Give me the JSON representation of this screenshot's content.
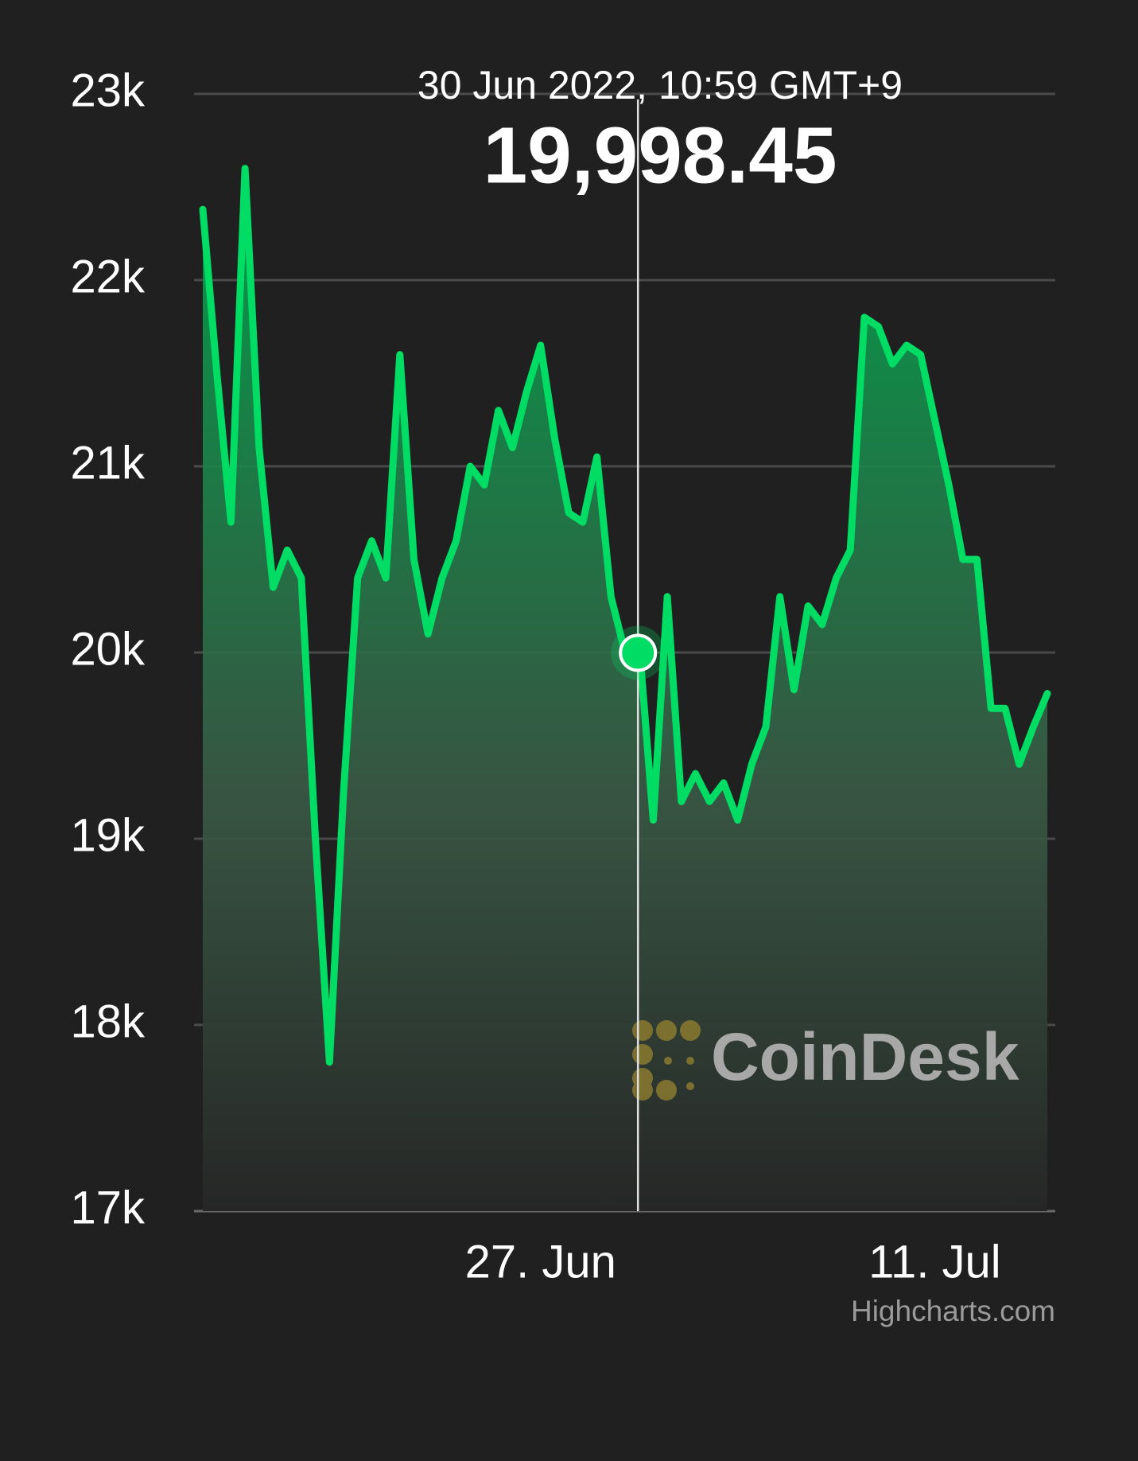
{
  "chart_data": {
    "type": "area",
    "x": [
      "2022-06-15T00:00",
      "2022-06-15T12:00",
      "2022-06-16T00:00",
      "2022-06-16T12:00",
      "2022-06-17T00:00",
      "2022-06-17T12:00",
      "2022-06-18T00:00",
      "2022-06-18T12:00",
      "2022-06-19T00:00",
      "2022-06-19T12:00",
      "2022-06-20T00:00",
      "2022-06-20T12:00",
      "2022-06-21T00:00",
      "2022-06-21T12:00",
      "2022-06-22T00:00",
      "2022-06-22T12:00",
      "2022-06-23T00:00",
      "2022-06-23T12:00",
      "2022-06-24T00:00",
      "2022-06-24T12:00",
      "2022-06-25T00:00",
      "2022-06-25T12:00",
      "2022-06-26T00:00",
      "2022-06-26T12:00",
      "2022-06-27T00:00",
      "2022-06-27T12:00",
      "2022-06-28T00:00",
      "2022-06-28T12:00",
      "2022-06-29T00:00",
      "2022-06-29T12:00",
      "2022-06-30T00:00",
      "2022-06-30T12:00",
      "2022-07-01T00:00",
      "2022-07-01T12:00",
      "2022-07-02T00:00",
      "2022-07-02T12:00",
      "2022-07-03T00:00",
      "2022-07-03T12:00",
      "2022-07-04T00:00",
      "2022-07-04T12:00",
      "2022-07-05T00:00",
      "2022-07-05T12:00",
      "2022-07-06T00:00",
      "2022-07-06T12:00",
      "2022-07-07T00:00",
      "2022-07-07T12:00",
      "2022-07-08T00:00",
      "2022-07-08T12:00",
      "2022-07-09T00:00",
      "2022-07-09T12:00",
      "2022-07-10T00:00",
      "2022-07-10T12:00",
      "2022-07-11T00:00",
      "2022-07-11T12:00",
      "2022-07-12T00:00",
      "2022-07-12T12:00",
      "2022-07-13T00:00",
      "2022-07-13T12:00",
      "2022-07-14T00:00",
      "2022-07-14T12:00",
      "2022-07-15T00:00"
    ],
    "values": [
      22380,
      21500,
      20700,
      22600,
      21100,
      20350,
      20550,
      20400,
      19000,
      17800,
      19250,
      20400,
      20600,
      20400,
      21600,
      20500,
      20100,
      20400,
      20600,
      21000,
      20900,
      21300,
      21100,
      21400,
      21650,
      21150,
      20750,
      20700,
      21050,
      20300,
      20000,
      20050,
      19100,
      20300,
      19200,
      19350,
      19200,
      19300,
      19100,
      19400,
      19600,
      20300,
      19800,
      20250,
      20150,
      20400,
      20550,
      21800,
      21750,
      21550,
      21650,
      21600,
      21250,
      20900,
      20500,
      20500,
      19700,
      19700,
      19400,
      19600,
      19780
    ],
    "color": "#00dc64",
    "xlim": [
      "2022-06-15T00:00",
      "2022-07-15T00:00"
    ],
    "xticks": [
      {
        "value": "2022-06-27T00:00",
        "label": "27. Jun"
      },
      {
        "value": "2022-07-11T00:00",
        "label": "11. Jul"
      }
    ],
    "ylim": [
      17000,
      23000
    ],
    "yticks": [
      {
        "value": 17000,
        "label": "17k"
      },
      {
        "value": 18000,
        "label": "18k"
      },
      {
        "value": 19000,
        "label": "19k"
      },
      {
        "value": 20000,
        "label": "20k"
      },
      {
        "value": 21000,
        "label": "21k"
      },
      {
        "value": 22000,
        "label": "22k"
      },
      {
        "value": 23000,
        "label": "23k"
      }
    ],
    "grid": true,
    "tooltip": {
      "x": "2022-06-30T10:59",
      "label": "30 Jun 2022, 10:59 GMT+9",
      "value": 19998.45,
      "value_label": "19,998.45"
    },
    "watermark": "CoinDesk",
    "credits": "Highcharts.com"
  }
}
